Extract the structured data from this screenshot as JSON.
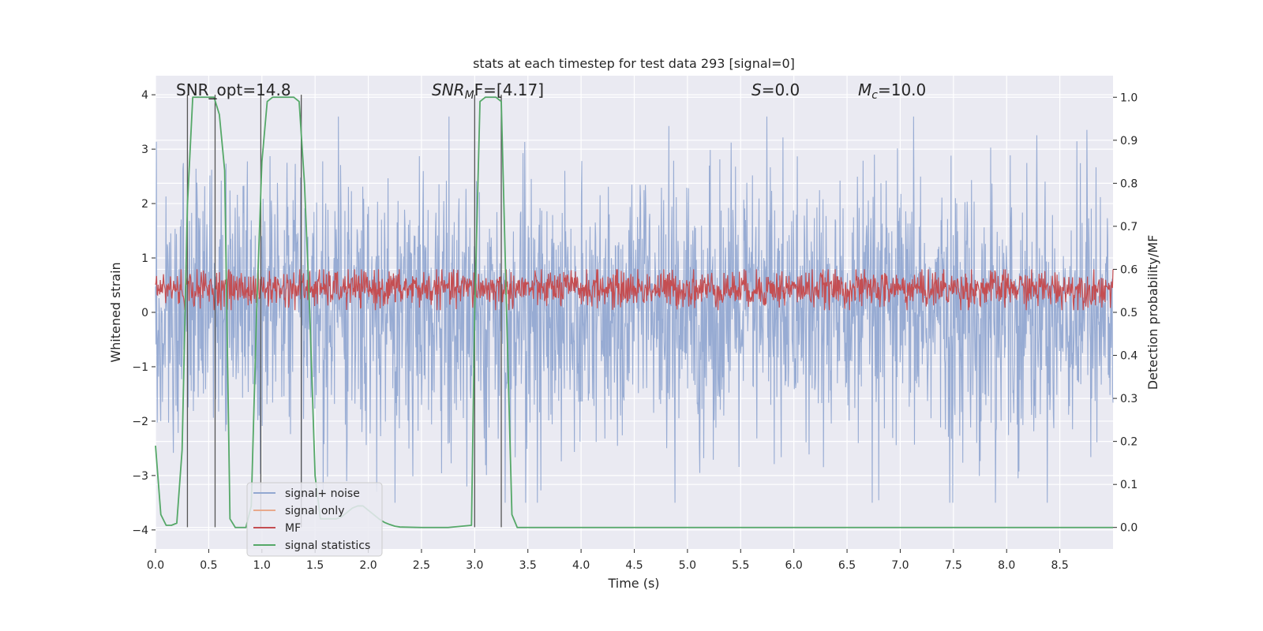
{
  "chart_data": {
    "type": "line",
    "title": "stats at each timestep for test data 293 [signal=0]",
    "xlabel": "Time (s)",
    "ylabel_left": "Whitened strain",
    "ylabel_right": "Detection probability/MF",
    "xlim": [
      0.0,
      9.0
    ],
    "ylim_left": [
      -4.35,
      4.35
    ],
    "ylim_right": [
      -0.05,
      1.05
    ],
    "xticks": [
      "0.0",
      "0.5",
      "1.0",
      "1.5",
      "2.0",
      "2.5",
      "3.0",
      "3.5",
      "4.0",
      "4.5",
      "5.0",
      "5.5",
      "6.0",
      "6.5",
      "7.0",
      "7.5",
      "8.0",
      "8.5"
    ],
    "yticks_left": [
      "4",
      "3",
      "2",
      "1",
      "0",
      "−1",
      "−2",
      "−3",
      "−4"
    ],
    "yticks_right": [
      "1.0",
      "0.9",
      "0.8",
      "0.7",
      "0.6",
      "0.5",
      "0.4",
      "0.3",
      "0.2",
      "0.1",
      "0.0"
    ],
    "annotations": {
      "snr_opt": "SNR_opt=14.8",
      "snr_mf_main": "SNR",
      "snr_mf_sub": "M",
      "snr_mf_rest": "F=[4.17]",
      "s_main": "S",
      "s_rest": "=0.0",
      "mc_main": "M",
      "mc_sub": "c",
      "mc_rest": "=10.0"
    },
    "legend": [
      "signal+ noise",
      "signal only",
      "MF",
      "signal statistics"
    ],
    "legend_placement": "lower-left",
    "grid": true,
    "colors": {
      "noise": "#92a8d1",
      "signal_only": "#e8a98c",
      "mf": "#c44e52",
      "stat": "#55a868",
      "vline": "#555555",
      "background": "#eaeaf2"
    },
    "series": [
      {
        "name": "signal statistics",
        "x": [
          0.0,
          0.05,
          0.1,
          0.15,
          0.2,
          0.25,
          0.3,
          0.35,
          0.4,
          0.45,
          0.5,
          0.55,
          0.6,
          0.65,
          0.7,
          0.75,
          0.8,
          0.85,
          0.9,
          0.95,
          1.0,
          1.05,
          1.1,
          1.15,
          1.2,
          1.25,
          1.3,
          1.35,
          1.4,
          1.45,
          1.5,
          1.55,
          1.6,
          1.65,
          1.7,
          1.75,
          1.8,
          1.85,
          1.9,
          1.95,
          2.0,
          2.05,
          2.1,
          2.15,
          2.2,
          2.25,
          2.3,
          2.5,
          2.75,
          2.97,
          3.0,
          3.05,
          3.1,
          3.15,
          3.2,
          3.25,
          3.3,
          3.35,
          3.4,
          9.0
        ],
        "y": [
          0.19,
          0.03,
          0.005,
          0.005,
          0.01,
          0.18,
          0.75,
          1.0,
          1.0,
          1.0,
          1.0,
          1.0,
          0.96,
          0.83,
          0.02,
          0.0,
          0.0,
          0.0,
          0.05,
          0.5,
          0.85,
          0.99,
          1.0,
          1.0,
          1.0,
          1.0,
          1.0,
          0.99,
          0.8,
          0.5,
          0.12,
          0.02,
          0.02,
          0.02,
          0.02,
          0.025,
          0.035,
          0.045,
          0.05,
          0.05,
          0.04,
          0.03,
          0.02,
          0.012,
          0.007,
          0.003,
          0.001,
          0.0,
          0.0,
          0.005,
          0.5,
          0.99,
          1.0,
          1.0,
          1.0,
          0.99,
          0.5,
          0.03,
          0.0,
          0.0
        ]
      }
    ],
    "vlines_x": [
      0.3,
      0.56,
      0.99,
      1.37,
      3.0,
      3.25
    ]
  }
}
